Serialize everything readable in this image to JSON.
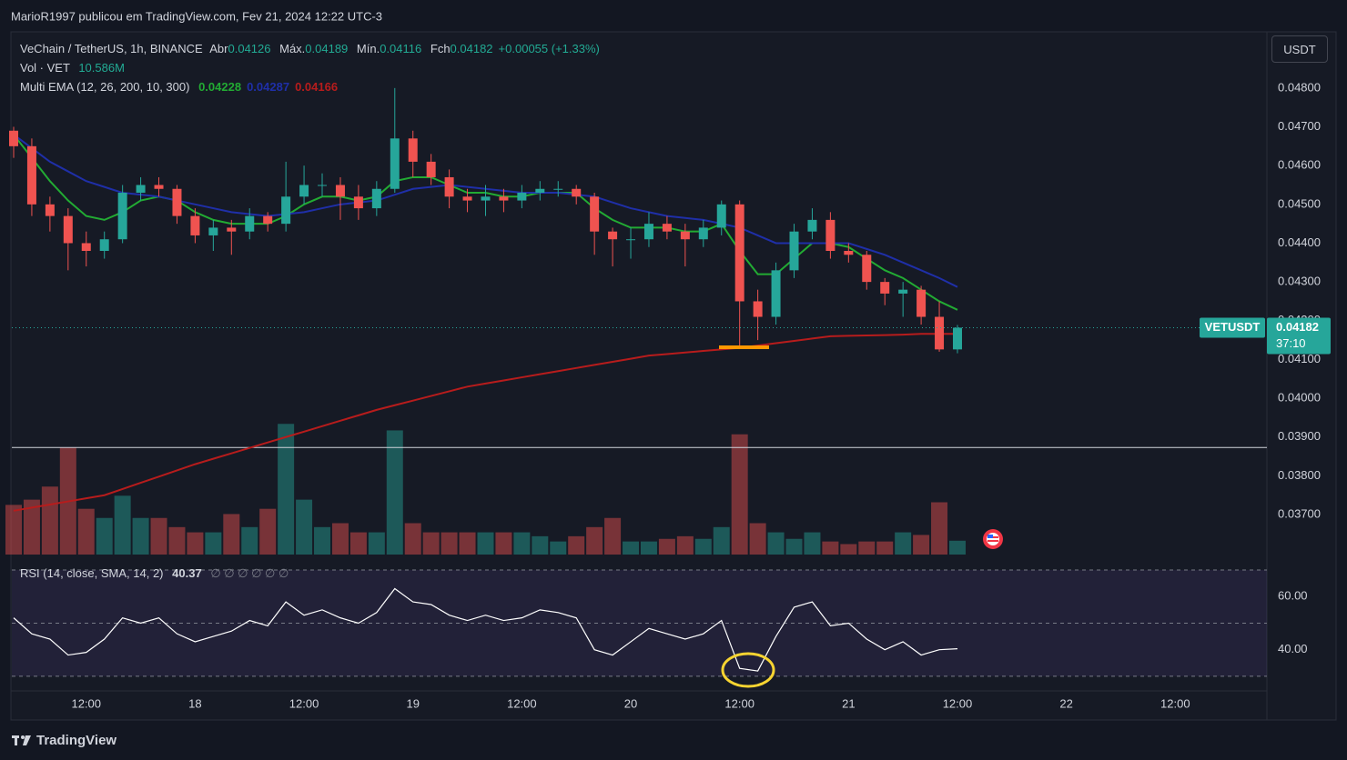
{
  "header": {
    "publisher": "MarioR1997 publicou em TradingView.com, Fev 21, 2024 12:22 UTC-3"
  },
  "footer": {
    "brand": "TradingView"
  },
  "currency_button": "USDT",
  "chart_data": [
    {
      "type": "candlestick",
      "title": "VeChain / TetherUS, 1h, BINANCE",
      "legend_labels": {
        "open": "Abr",
        "high": "Máx.",
        "low": "Mín.",
        "close": "Fch"
      },
      "change_label": "+0.00055 (+1.33%)",
      "symbol_tag": "VETUSDT",
      "countdown": "37:10",
      "up_color": "#26a69a",
      "down_color": "#ef5350",
      "xlim": [
        3.8,
        142.1
      ],
      "xticks": [
        {
          "value": 12,
          "label": "12:00"
        },
        {
          "value": 24,
          "label": "18"
        },
        {
          "value": 36,
          "label": "12:00"
        },
        {
          "value": 48,
          "label": "19"
        },
        {
          "value": 60,
          "label": "12:00"
        },
        {
          "value": 72,
          "label": "20"
        },
        {
          "value": 84,
          "label": "12:00"
        },
        {
          "value": 96,
          "label": "21"
        },
        {
          "value": 108,
          "label": "12:00"
        },
        {
          "value": 120,
          "label": "22"
        },
        {
          "value": 132,
          "label": "12:00"
        }
      ],
      "ylim": [
        0.03597,
        0.04945
      ],
      "yticks": [
        {
          "value": 0.037,
          "label": "0.03700"
        },
        {
          "value": 0.038,
          "label": "0.03800"
        },
        {
          "value": 0.039,
          "label": "0.03900"
        },
        {
          "value": 0.04,
          "label": "0.04000"
        },
        {
          "value": 0.041,
          "label": "0.04100"
        },
        {
          "value": 0.042,
          "label": "0.04200"
        },
        {
          "value": 0.043,
          "label": "0.04300"
        },
        {
          "value": 0.044,
          "label": "0.04400"
        },
        {
          "value": 0.045,
          "label": "0.04500"
        },
        {
          "value": 0.046,
          "label": "0.04600"
        },
        {
          "value": 0.047,
          "label": "0.04700"
        },
        {
          "value": 0.048,
          "label": "0.04800"
        }
      ],
      "hline": 0.03873,
      "x": [
        4,
        6,
        8,
        10,
        12,
        14,
        16,
        18,
        20,
        22,
        24,
        26,
        28,
        30,
        32,
        34,
        36,
        38,
        40,
        42,
        44,
        46,
        48,
        50,
        52,
        54,
        56,
        58,
        60,
        62,
        64,
        66,
        68,
        70,
        72,
        74,
        76,
        78,
        80,
        82,
        84,
        86,
        88,
        90,
        92,
        94,
        96,
        98,
        100,
        102,
        104,
        106,
        108
      ],
      "open": [
        0.0469,
        0.0465,
        0.045,
        0.0447,
        0.044,
        0.0438,
        0.0441,
        0.0453,
        0.0455,
        0.0454,
        0.0447,
        0.0442,
        0.0444,
        0.0443,
        0.0447,
        0.0445,
        0.0452,
        0.0455,
        0.0455,
        0.0452,
        0.0449,
        0.0454,
        0.0467,
        0.0461,
        0.0457,
        0.0452,
        0.0451,
        0.0452,
        0.0451,
        0.0453,
        0.0454,
        0.0454,
        0.0452,
        0.0443,
        0.0441,
        0.0441,
        0.0445,
        0.0443,
        0.0441,
        0.0444,
        0.045,
        0.0425,
        0.0421,
        0.0433,
        0.0443,
        0.0446,
        0.0438,
        0.0437,
        0.043,
        0.0427,
        0.0428,
        0.0421,
        0.04126
      ],
      "high": [
        0.047,
        0.0467,
        0.0452,
        0.0449,
        0.0443,
        0.0443,
        0.0455,
        0.0457,
        0.0457,
        0.0455,
        0.0449,
        0.0446,
        0.0446,
        0.0449,
        0.0448,
        0.0461,
        0.046,
        0.0458,
        0.0457,
        0.0455,
        0.0456,
        0.048,
        0.0469,
        0.0463,
        0.0459,
        0.0454,
        0.0455,
        0.0454,
        0.0455,
        0.0456,
        0.0456,
        0.0455,
        0.0453,
        0.0444,
        0.0444,
        0.0448,
        0.0447,
        0.0445,
        0.0446,
        0.0451,
        0.0451,
        0.0428,
        0.0435,
        0.0445,
        0.0449,
        0.0448,
        0.044,
        0.0438,
        0.0431,
        0.043,
        0.0429,
        0.0425,
        0.04189
      ],
      "low": [
        0.0462,
        0.0447,
        0.0443,
        0.0433,
        0.0434,
        0.0436,
        0.044,
        0.0451,
        0.0452,
        0.0445,
        0.044,
        0.0438,
        0.0437,
        0.0441,
        0.0443,
        0.0443,
        0.045,
        0.0452,
        0.0446,
        0.0446,
        0.0447,
        0.0453,
        0.0457,
        0.0455,
        0.0449,
        0.0448,
        0.0447,
        0.0448,
        0.0449,
        0.0451,
        0.0452,
        0.045,
        0.0437,
        0.0434,
        0.0436,
        0.0439,
        0.0441,
        0.0434,
        0.0439,
        0.0442,
        0.0413,
        0.0415,
        0.0419,
        0.0431,
        0.0441,
        0.0436,
        0.0435,
        0.0428,
        0.0424,
        0.0421,
        0.0419,
        0.0412,
        0.04116
      ],
      "close": [
        0.0465,
        0.045,
        0.0447,
        0.044,
        0.0438,
        0.0441,
        0.0453,
        0.0455,
        0.0454,
        0.0447,
        0.0442,
        0.0444,
        0.0443,
        0.0447,
        0.0445,
        0.0452,
        0.0455,
        0.0455,
        0.0452,
        0.0449,
        0.0454,
        0.0467,
        0.0461,
        0.0457,
        0.0452,
        0.0451,
        0.0452,
        0.0451,
        0.0453,
        0.0454,
        0.0454,
        0.0452,
        0.0443,
        0.0441,
        0.0441,
        0.0445,
        0.0443,
        0.0441,
        0.0444,
        0.045,
        0.0425,
        0.0421,
        0.0433,
        0.0443,
        0.0446,
        0.0438,
        0.0437,
        0.043,
        0.0427,
        0.0428,
        0.0421,
        0.04126,
        0.04182
      ],
      "volume": {
        "name": "Vol · VET",
        "value_label": "10.586M",
        "vlim": [
          0,
          400
        ],
        "values": [
          38,
          42,
          52,
          82,
          35,
          28,
          45,
          28,
          28,
          21,
          17,
          17,
          31,
          21,
          35,
          100,
          42,
          21,
          24,
          17,
          17,
          95,
          24,
          17,
          17,
          17,
          17,
          17,
          17,
          14,
          10,
          14,
          21,
          28,
          10,
          10,
          12,
          14,
          12,
          21,
          92,
          24,
          17,
          12,
          17,
          10,
          8,
          10,
          10,
          17,
          15,
          40,
          10.586
        ]
      },
      "indicator": {
        "name": "Multi EMA (12, 26, 200, 10, 300)",
        "series": [
          {
            "color": "#22ab33",
            "values": [
              0.0468,
              0.0462,
              0.0456,
              0.0451,
              0.0447,
              0.0446,
              0.0448,
              0.0451,
              0.0452,
              0.0451,
              0.0448,
              0.0446,
              0.0445,
              0.0445,
              0.0445,
              0.0447,
              0.045,
              0.0452,
              0.0452,
              0.0451,
              0.0452,
              0.0456,
              0.0457,
              0.0457,
              0.0455,
              0.0453,
              0.0453,
              0.0452,
              0.0452,
              0.0453,
              0.0453,
              0.0453,
              0.0449,
              0.0446,
              0.0444,
              0.0444,
              0.0444,
              0.0443,
              0.0443,
              0.0445,
              0.0438,
              0.0432,
              0.0432,
              0.0436,
              0.044,
              0.044,
              0.0439,
              0.0436,
              0.0433,
              0.0431,
              0.0428,
              0.0425,
              0.04228
            ]
          },
          {
            "color": "#1f2fa8",
            "values": [
              0.0468,
              0.04645,
              0.0461,
              0.04585,
              0.0456,
              0.04545,
              0.0453,
              0.04525,
              0.0452,
              0.0451,
              0.045,
              0.0449,
              0.0448,
              0.04475,
              0.0447,
              0.04475,
              0.0448,
              0.0449,
              0.045,
              0.04505,
              0.0451,
              0.04525,
              0.0454,
              0.04545,
              0.0455,
              0.04545,
              0.0454,
              0.04535,
              0.0453,
              0.0453,
              0.0453,
              0.04525,
              0.0452,
              0.04505,
              0.0449,
              0.0448,
              0.0447,
              0.04465,
              0.0446,
              0.0445,
              0.0444,
              0.0442,
              0.044,
              0.044,
              0.044,
              0.044,
              0.044,
              0.04385,
              0.0437,
              0.0435,
              0.0433,
              0.0431,
              0.04287
            ]
          },
          {
            "color": "#b71c1c",
            "values": [
              0.0371,
              0.03718,
              0.03726,
              0.03734,
              0.03742,
              0.0375,
              0.03766,
              0.03782,
              0.03798,
              0.03814,
              0.0383,
              0.03844,
              0.03858,
              0.03872,
              0.03886,
              0.039,
              0.03914,
              0.03928,
              0.03942,
              0.03956,
              0.0397,
              0.03982,
              0.03994,
              0.04006,
              0.04018,
              0.0403,
              0.04038,
              0.04046,
              0.04054,
              0.04062,
              0.0407,
              0.04078,
              0.04086,
              0.04094,
              0.04102,
              0.0411,
              0.04114,
              0.04118,
              0.04122,
              0.04126,
              0.0413,
              0.04136,
              0.04142,
              0.04148,
              0.04154,
              0.0416,
              0.04161,
              0.04162,
              0.04163,
              0.04164,
              0.04166,
              0.04166,
              0.04166
            ]
          }
        ]
      }
    },
    {
      "type": "line",
      "title": "RSI (14, close, SMA, 14, 2)",
      "extras": "∅ ∅ ∅ ∅ ∅ ∅",
      "color": "#ffffff",
      "ylim": [
        24.5,
        72.4
      ],
      "yticks": [
        {
          "value": 40,
          "label": "40.00"
        },
        {
          "value": 60,
          "label": "60.00"
        }
      ],
      "bands": [
        30,
        50,
        70
      ],
      "x": [
        4,
        6,
        8,
        10,
        12,
        14,
        16,
        18,
        20,
        22,
        24,
        26,
        28,
        30,
        32,
        34,
        36,
        38,
        40,
        42,
        44,
        46,
        48,
        50,
        52,
        54,
        56,
        58,
        60,
        62,
        64,
        66,
        68,
        70,
        72,
        74,
        76,
        78,
        80,
        82,
        84,
        86,
        88,
        90,
        92,
        94,
        96,
        98,
        100,
        102,
        104,
        106,
        108
      ],
      "values": [
        52,
        46,
        44,
        38,
        39,
        44,
        52,
        50,
        52,
        46,
        43,
        45,
        47,
        51,
        49,
        58,
        53,
        55,
        52,
        50,
        54,
        63,
        58,
        57,
        53,
        51,
        53,
        51,
        52,
        55,
        54,
        52,
        40,
        38,
        43,
        48,
        46,
        44,
        46,
        51,
        33,
        32,
        45,
        56,
        58,
        49,
        50,
        44,
        40,
        43,
        38,
        40,
        40.37
      ]
    }
  ]
}
